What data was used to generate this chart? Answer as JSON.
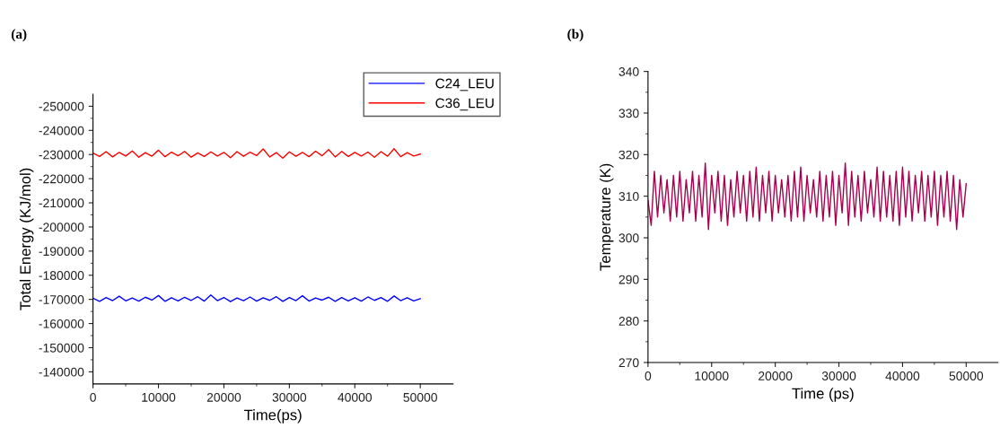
{
  "chart_data": [
    {
      "type": "line",
      "title": "(a)",
      "xlabel": "Time(ps)",
      "ylabel": "Total Energy (KJ/mol)",
      "legend": "top right",
      "x": [
        0,
        1000,
        2000,
        3000,
        4000,
        5000,
        6000,
        7000,
        8000,
        9000,
        10000,
        11000,
        12000,
        13000,
        14000,
        15000,
        16000,
        17000,
        18000,
        19000,
        20000,
        21000,
        22000,
        23000,
        24000,
        25000,
        26000,
        27000,
        28000,
        29000,
        30000,
        31000,
        32000,
        33000,
        34000,
        35000,
        36000,
        37000,
        38000,
        39000,
        40000,
        41000,
        42000,
        43000,
        44000,
        45000,
        46000,
        47000,
        48000,
        49000,
        50000
      ],
      "series": [
        {
          "name": "C24_LEU",
          "color": "#0000ff",
          "values": [
            -170500,
            -169200,
            -170800,
            -169500,
            -171300,
            -169400,
            -170600,
            -169300,
            -170900,
            -169700,
            -171600,
            -169200,
            -170700,
            -169400,
            -170900,
            -169600,
            -171100,
            -169300,
            -171800,
            -169500,
            -170800,
            -169100,
            -170600,
            -169500,
            -171000,
            -169300,
            -170700,
            -169600,
            -171100,
            -169200,
            -170800,
            -169500,
            -171500,
            -169300,
            -170600,
            -169700,
            -170900,
            -169200,
            -170800,
            -169400,
            -170700,
            -169300,
            -171000,
            -169600,
            -170800,
            -169200,
            -171400,
            -169500,
            -170700,
            -169400,
            -170300
          ]
        },
        {
          "name": "C36_LEU",
          "color": "#ff0000",
          "values": [
            -230600,
            -229200,
            -231200,
            -229000,
            -230900,
            -229400,
            -231500,
            -228900,
            -230800,
            -229300,
            -231800,
            -229100,
            -231000,
            -229500,
            -231300,
            -228900,
            -230700,
            -229200,
            -231100,
            -229400,
            -230900,
            -228700,
            -231200,
            -229300,
            -231000,
            -229600,
            -232300,
            -229000,
            -230800,
            -228500,
            -231100,
            -229300,
            -230900,
            -229100,
            -231400,
            -229500,
            -232000,
            -229000,
            -231300,
            -229200,
            -230900,
            -229400,
            -231000,
            -228900,
            -231200,
            -229300,
            -232400,
            -229100,
            -230800,
            -229400,
            -230200
          ]
        }
      ],
      "xlim": [
        0,
        55000
      ],
      "xticks": [
        0,
        10000,
        20000,
        30000,
        40000,
        50000
      ],
      "ylim": [
        -135000,
        -255000
      ],
      "yticks": [
        {
          "value": -250000,
          "label": "-250000"
        },
        {
          "value": -240000,
          "label": "-240000"
        },
        {
          "value": -230000,
          "label": "-230000"
        },
        {
          "value": -220000,
          "label": "-220000"
        },
        {
          "value": -210000,
          "label": "-210000"
        },
        {
          "value": -200000,
          "label": "-200000"
        },
        {
          "value": -190000,
          "label": "-190000"
        },
        {
          "value": -180000,
          "label": "-180000"
        },
        {
          "value": -170000,
          "label": "-170000"
        },
        {
          "value": -160000,
          "label": "-160000"
        },
        {
          "value": -150000,
          "label": "-150000"
        },
        {
          "value": -140000,
          "label": "-140000"
        }
      ]
    },
    {
      "type": "line",
      "title": "(b)",
      "xlabel": "Time (ps)",
      "ylabel": "Temperature (K)",
      "x": [
        0,
        500,
        1000,
        1500,
        2000,
        2500,
        3000,
        3500,
        4000,
        4500,
        5000,
        5500,
        6000,
        6500,
        7000,
        7500,
        8000,
        8500,
        9000,
        9500,
        10000,
        10500,
        11000,
        11500,
        12000,
        12500,
        13000,
        13500,
        14000,
        14500,
        15000,
        15500,
        16000,
        16500,
        17000,
        17500,
        18000,
        18500,
        19000,
        19500,
        20000,
        20500,
        21000,
        21500,
        22000,
        22500,
        23000,
        23500,
        24000,
        24500,
        25000,
        25500,
        26000,
        26500,
        27000,
        27500,
        28000,
        28500,
        29000,
        29500,
        30000,
        30500,
        31000,
        31500,
        32000,
        32500,
        33000,
        33500,
        34000,
        34500,
        35000,
        35500,
        36000,
        36500,
        37000,
        37500,
        38000,
        38500,
        39000,
        39500,
        40000,
        40500,
        41000,
        41500,
        42000,
        42500,
        43000,
        43500,
        44000,
        44500,
        45000,
        45500,
        46000,
        46500,
        47000,
        47500,
        48000,
        48500,
        49000,
        49500,
        50000
      ],
      "series": [
        {
          "color": "#a8004f",
          "values": [
            309,
            303,
            316,
            305,
            315,
            306,
            314,
            304,
            315,
            305,
            316,
            304,
            314,
            306,
            316,
            304,
            315,
            305,
            318,
            302,
            315,
            306,
            316,
            304,
            315,
            303,
            314,
            305,
            316,
            306,
            315,
            304,
            316,
            305,
            317,
            304,
            315,
            306,
            316,
            304,
            315,
            306,
            314,
            305,
            315,
            304,
            316,
            305,
            317,
            304,
            315,
            306,
            314,
            305,
            316,
            304,
            315,
            305,
            316,
            303,
            315,
            306,
            318,
            303,
            316,
            305,
            315,
            304,
            316,
            306,
            314,
            305,
            317,
            304,
            316,
            305,
            315,
            304,
            316,
            303,
            317,
            305,
            316,
            304,
            315,
            306,
            316,
            304,
            315,
            305,
            316,
            303,
            315,
            305,
            316,
            304,
            315,
            302,
            314,
            305,
            313
          ]
        }
      ],
      "xlim": [
        0,
        55000
      ],
      "xticks": [
        0,
        10000,
        20000,
        30000,
        40000,
        50000
      ],
      "ylim": [
        270,
        340
      ],
      "yticks": [
        270,
        280,
        290,
        300,
        310,
        320,
        330,
        340
      ]
    }
  ]
}
